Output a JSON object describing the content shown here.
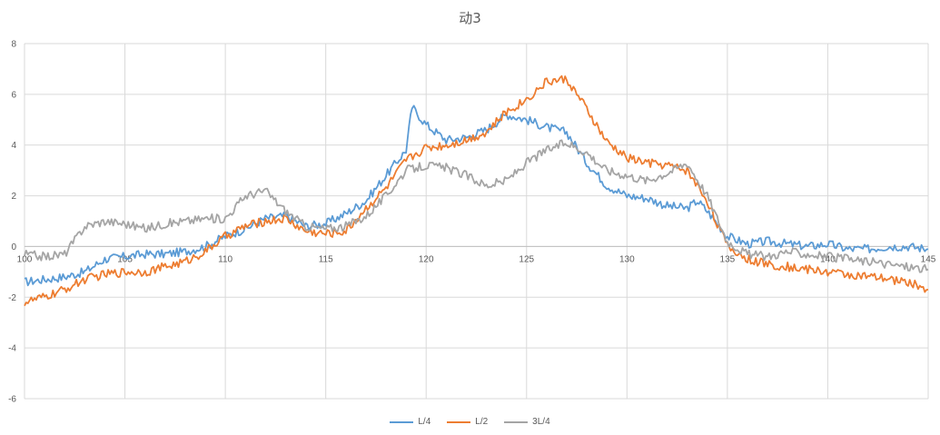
{
  "chart_data": {
    "type": "line",
    "title": "动3",
    "xlabel": "",
    "ylabel": "",
    "xlim": [
      100,
      145
    ],
    "ylim": [
      -6,
      8
    ],
    "x_ticks": [
      "100",
      "105",
      "110",
      "115",
      "120",
      "125",
      "130",
      "135",
      "140",
      "145"
    ],
    "y_ticks": [
      "8",
      "6",
      "4",
      "2",
      "0",
      "-2",
      "-4",
      "-6"
    ],
    "grid": true,
    "legend_position": "bottom",
    "series": [
      {
        "name": "L/4",
        "color": "#5b9bd5",
        "points": [
          [
            100,
            -1.4
          ],
          [
            101,
            -1.3
          ],
          [
            102,
            -1.2
          ],
          [
            103,
            -1.0
          ],
          [
            104,
            -0.5
          ],
          [
            105,
            -0.4
          ],
          [
            106,
            -0.3
          ],
          [
            107,
            -0.3
          ],
          [
            108,
            -0.2
          ],
          [
            109,
            0.0
          ],
          [
            110,
            0.4
          ],
          [
            111,
            0.7
          ],
          [
            112,
            1.1
          ],
          [
            113,
            1.2
          ],
          [
            114,
            0.8
          ],
          [
            115,
            0.9
          ],
          [
            116,
            1.3
          ],
          [
            117,
            1.8
          ],
          [
            118,
            2.8
          ],
          [
            119,
            3.8
          ],
          [
            119.3,
            5.5
          ],
          [
            120,
            4.8
          ],
          [
            121,
            4.2
          ],
          [
            122,
            4.3
          ],
          [
            123,
            4.6
          ],
          [
            124,
            5.2
          ],
          [
            125,
            5.0
          ],
          [
            126,
            4.7
          ],
          [
            127,
            4.5
          ],
          [
            128,
            3.3
          ],
          [
            129,
            2.4
          ],
          [
            130,
            2.0
          ],
          [
            131,
            1.9
          ],
          [
            132,
            1.6
          ],
          [
            133,
            1.5
          ],
          [
            133.5,
            1.8
          ],
          [
            134,
            1.4
          ],
          [
            135,
            0.4
          ],
          [
            136,
            0.1
          ],
          [
            137,
            0.2
          ],
          [
            138,
            0.1
          ],
          [
            139,
            0.0
          ],
          [
            140,
            0.1
          ],
          [
            141,
            -0.1
          ],
          [
            142,
            -0.1
          ],
          [
            143,
            0.0
          ],
          [
            144,
            0.0
          ],
          [
            145,
            -0.1
          ]
        ]
      },
      {
        "name": "L/2",
        "color": "#ed7d31",
        "points": [
          [
            100,
            -2.2
          ],
          [
            101,
            -2.0
          ],
          [
            102,
            -1.7
          ],
          [
            103,
            -1.3
          ],
          [
            104,
            -1.1
          ],
          [
            105,
            -1.0
          ],
          [
            106,
            -1.0
          ],
          [
            107,
            -0.8
          ],
          [
            108,
            -0.6
          ],
          [
            109,
            -0.2
          ],
          [
            110,
            0.4
          ],
          [
            111,
            0.8
          ],
          [
            112,
            1.0
          ],
          [
            113,
            1.1
          ],
          [
            114,
            0.6
          ],
          [
            115,
            0.5
          ],
          [
            116,
            0.6
          ],
          [
            117,
            1.5
          ],
          [
            118,
            2.3
          ],
          [
            119,
            3.4
          ],
          [
            120,
            3.9
          ],
          [
            121,
            4.0
          ],
          [
            122,
            4.2
          ],
          [
            123,
            4.5
          ],
          [
            124,
            5.3
          ],
          [
            125,
            5.8
          ],
          [
            126,
            6.5
          ],
          [
            127,
            6.6
          ],
          [
            128,
            5.4
          ],
          [
            129,
            4.1
          ],
          [
            130,
            3.5
          ],
          [
            131,
            3.3
          ],
          [
            132,
            3.2
          ],
          [
            133,
            3.0
          ],
          [
            134,
            1.8
          ],
          [
            135,
            0.0
          ],
          [
            136,
            -0.5
          ],
          [
            137,
            -0.7
          ],
          [
            138,
            -0.8
          ],
          [
            139,
            -0.9
          ],
          [
            140,
            -1.0
          ],
          [
            141,
            -1.1
          ],
          [
            142,
            -1.2
          ],
          [
            143,
            -1.3
          ],
          [
            144,
            -1.4
          ],
          [
            145,
            -1.7
          ]
        ]
      },
      {
        "name": "3L/4",
        "color": "#a5a5a5",
        "points": [
          [
            100,
            -0.3
          ],
          [
            101,
            -0.4
          ],
          [
            102,
            -0.3
          ],
          [
            103,
            0.8
          ],
          [
            104,
            1.0
          ],
          [
            105,
            0.9
          ],
          [
            106,
            0.7
          ],
          [
            107,
            0.9
          ],
          [
            108,
            1.0
          ],
          [
            109,
            1.1
          ],
          [
            110,
            1.1
          ],
          [
            111,
            2.0
          ],
          [
            112,
            2.2
          ],
          [
            113,
            1.4
          ],
          [
            114,
            0.8
          ],
          [
            115,
            0.7
          ],
          [
            116,
            0.8
          ],
          [
            117,
            1.2
          ],
          [
            118,
            2.0
          ],
          [
            119,
            3.0
          ],
          [
            120,
            3.2
          ],
          [
            121,
            3.1
          ],
          [
            122,
            2.8
          ],
          [
            123,
            2.4
          ],
          [
            124,
            2.6
          ],
          [
            125,
            3.3
          ],
          [
            126,
            3.8
          ],
          [
            127,
            4.1
          ],
          [
            128,
            3.7
          ],
          [
            129,
            3.0
          ],
          [
            130,
            2.8
          ],
          [
            131,
            2.6
          ],
          [
            132,
            2.9
          ],
          [
            133,
            3.3
          ],
          [
            134,
            2.0
          ],
          [
            135,
            0.2
          ],
          [
            136,
            -0.3
          ],
          [
            137,
            -0.4
          ],
          [
            138,
            -0.2
          ],
          [
            139,
            -0.3
          ],
          [
            140,
            -0.4
          ],
          [
            141,
            -0.5
          ],
          [
            142,
            -0.6
          ],
          [
            143,
            -0.7
          ],
          [
            144,
            -0.8
          ],
          [
            145,
            -0.9
          ]
        ]
      }
    ]
  }
}
